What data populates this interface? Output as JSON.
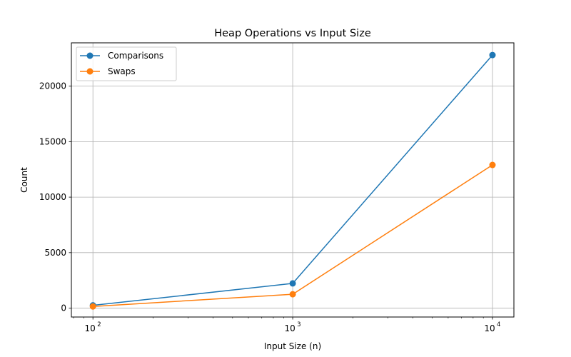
{
  "chart_data": {
    "type": "line",
    "title": "Heap Operations vs Input Size",
    "xlabel": "Input Size (n)",
    "ylabel": "Count",
    "xscale": "log",
    "xlim": [
      78,
      12800
    ],
    "ylim": [
      -800,
      23900
    ],
    "x": [
      100,
      1000,
      10000
    ],
    "x_ticks": [
      {
        "value": 100,
        "base": "10",
        "exp": "2"
      },
      {
        "value": 1000,
        "base": "10",
        "exp": "3"
      },
      {
        "value": 10000,
        "base": "10",
        "exp": "4"
      }
    ],
    "y_ticks": [
      0,
      5000,
      10000,
      15000,
      20000
    ],
    "grid": true,
    "legend_position": "top-left",
    "series": [
      {
        "name": "Comparisons",
        "color": "#1f77b4",
        "values": [
          250,
          2230,
          22800
        ]
      },
      {
        "name": "Swaps",
        "color": "#ff7f0e",
        "values": [
          150,
          1250,
          12900
        ]
      }
    ]
  }
}
